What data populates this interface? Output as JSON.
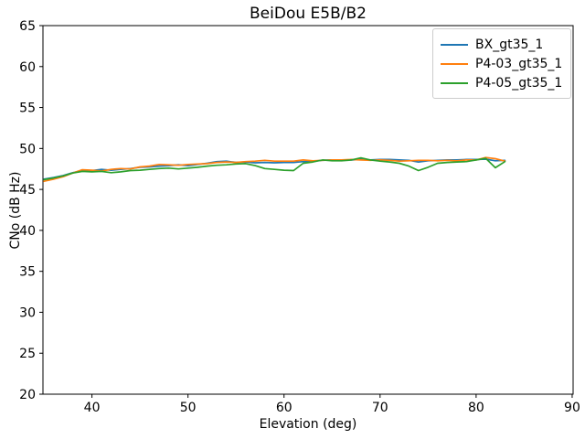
{
  "chart_data": {
    "type": "line",
    "title": "BeiDou E5B/B2",
    "xlabel": "Elevation (deg)",
    "ylabel": "CNo (dB Hz)",
    "xlim": [
      34.9,
      90.1
    ],
    "ylim": [
      20,
      65
    ],
    "xticks": [
      40,
      50,
      60,
      70,
      80,
      90
    ],
    "yticks": [
      20,
      25,
      30,
      35,
      40,
      45,
      50,
      55,
      60,
      65
    ],
    "grid": false,
    "legend_position": "upper right",
    "x": [
      35,
      36,
      37,
      38,
      39,
      40,
      41,
      42,
      43,
      44,
      45,
      46,
      47,
      48,
      49,
      50,
      51,
      52,
      53,
      54,
      55,
      56,
      57,
      58,
      59,
      60,
      61,
      62,
      63,
      64,
      65,
      66,
      67,
      68,
      69,
      70,
      71,
      72,
      73,
      74,
      75,
      76,
      77,
      78,
      79,
      80,
      81,
      82,
      83
    ],
    "series": [
      {
        "name": "BX_gt35_1",
        "color": "#1f77b4",
        "values": [
          46.25,
          46.45,
          46.7,
          47.05,
          47.3,
          47.3,
          47.45,
          47.35,
          47.45,
          47.55,
          47.7,
          47.75,
          47.85,
          47.9,
          48.0,
          47.9,
          48.05,
          48.2,
          48.4,
          48.45,
          48.3,
          48.35,
          48.25,
          48.3,
          48.25,
          48.3,
          48.3,
          48.4,
          48.45,
          48.55,
          48.6,
          48.55,
          48.6,
          48.65,
          48.6,
          48.65,
          48.65,
          48.6,
          48.55,
          48.35,
          48.5,
          48.55,
          48.6,
          48.6,
          48.65,
          48.65,
          48.7,
          48.5,
          48.55
        ]
      },
      {
        "name": "P4-03_gt35_1",
        "color": "#ff7f0e",
        "values": [
          46.0,
          46.25,
          46.55,
          47.0,
          47.4,
          47.35,
          47.25,
          47.45,
          47.55,
          47.5,
          47.75,
          47.85,
          48.05,
          48.0,
          47.95,
          48.05,
          48.1,
          48.15,
          48.3,
          48.35,
          48.3,
          48.4,
          48.45,
          48.55,
          48.45,
          48.45,
          48.45,
          48.6,
          48.5,
          48.55,
          48.6,
          48.6,
          48.65,
          48.6,
          48.55,
          48.6,
          48.55,
          48.45,
          48.5,
          48.55,
          48.55,
          48.5,
          48.55,
          48.5,
          48.6,
          48.6,
          48.9,
          48.75,
          48.45
        ]
      },
      {
        "name": "P4-05_gt35_1",
        "color": "#2ca02c",
        "values": [
          46.2,
          46.4,
          46.65,
          47.0,
          47.2,
          47.15,
          47.2,
          47.05,
          47.15,
          47.3,
          47.35,
          47.45,
          47.55,
          47.6,
          47.5,
          47.6,
          47.7,
          47.85,
          47.95,
          48.0,
          48.1,
          48.15,
          47.9,
          47.55,
          47.45,
          47.35,
          47.3,
          48.2,
          48.35,
          48.6,
          48.5,
          48.5,
          48.6,
          48.85,
          48.6,
          48.45,
          48.35,
          48.2,
          47.85,
          47.3,
          47.7,
          48.2,
          48.3,
          48.35,
          48.4,
          48.6,
          48.8,
          47.65,
          48.4
        ]
      }
    ]
  }
}
